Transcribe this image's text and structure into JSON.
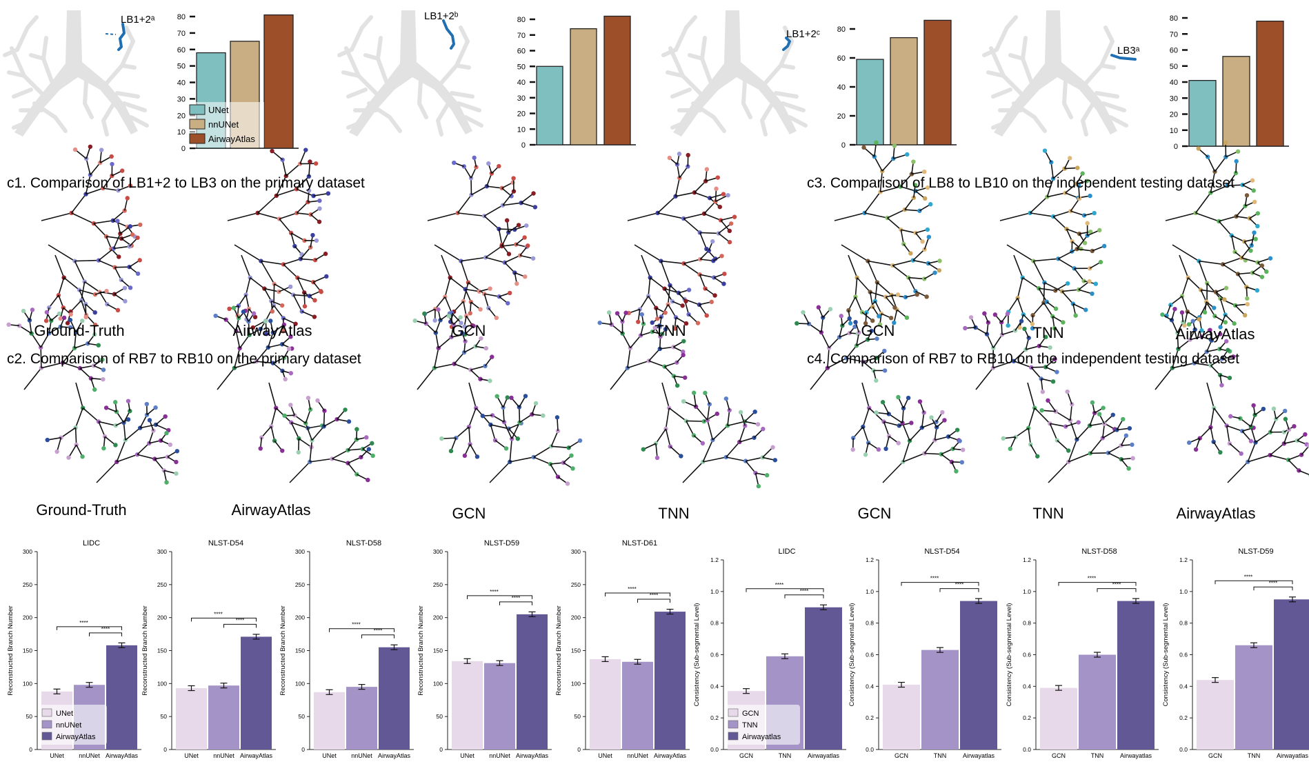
{
  "panel_captions": {
    "c1": "c1. Comparison of LB1+2 to LB3 on the primary dataset",
    "c2": "c2. Comparison of RB7 to RB10 on the primary dataset",
    "c3": "c3. Comparison of LB8 to LB10 on the independent testing dataset",
    "c4": "c4. Comparison of RB7 to RB10 on the independent testing dataset"
  },
  "branch_labels": [
    "LB1+2ᵃ",
    "LB1+2ᵇ",
    "LB1+2ᶜ",
    "LB3ᵃ"
  ],
  "tree_labels": {
    "row1": [
      "Ground-Truth",
      "AirwayAtlas",
      "GCN",
      "TNN",
      "GCN",
      "TNN",
      "AirwayAtlas"
    ],
    "row2": [
      "Ground-Truth",
      "AirwayAtlas",
      "GCN",
      "TNN",
      "GCN",
      "TNN",
      "AirwayAtlas"
    ]
  },
  "colors": {
    "unet": "#7fbfbf",
    "nnunet": "#c9ae84",
    "airwayatlas": "#9d4f2a",
    "p_light": "#e8d9ea",
    "p_mid": "#a493c6",
    "p_dark": "#625896",
    "airway_gray": "#e2e2e2",
    "branch_blue": "#1f6fb2"
  },
  "chart_data": [
    {
      "type": "bar",
      "categories": [
        "UNet",
        "nnUNet",
        "AirwayAtlas"
      ],
      "values": [
        58,
        65,
        81
      ],
      "ylim": [
        0,
        80
      ],
      "yticks": [
        0,
        10,
        20,
        30,
        40,
        50,
        60,
        70,
        80
      ],
      "grid": false,
      "legend": {
        "entries": [
          "UNet",
          "nnUNet",
          "AirwayAtlas"
        ],
        "placement": "lower-left"
      }
    },
    {
      "type": "bar",
      "categories": [
        "UNet",
        "nnUNet",
        "AirwayAtlas"
      ],
      "values": [
        50,
        74,
        82
      ],
      "ylim": [
        0,
        80
      ],
      "yticks": [
        0,
        10,
        20,
        30,
        40,
        50,
        60,
        70,
        80
      ],
      "grid": false
    },
    {
      "type": "bar",
      "categories": [
        "UNet",
        "nnUNet",
        "AirwayAtlas"
      ],
      "values": [
        59,
        74,
        86
      ],
      "ylim": [
        0,
        80
      ],
      "yticks": [
        0,
        20,
        40,
        60,
        80
      ],
      "grid": false
    },
    {
      "type": "bar",
      "categories": [
        "UNet",
        "nnUNet",
        "AirwayAtlas"
      ],
      "values": [
        41,
        56,
        78
      ],
      "ylim": [
        0,
        80
      ],
      "yticks": [
        0,
        10,
        20,
        30,
        40,
        50,
        60,
        70,
        80
      ],
      "grid": false
    },
    {
      "type": "bar",
      "title": "LIDC",
      "ylabel": "Reconstructed Branch Number",
      "categories": [
        "UNet",
        "nnUNet",
        "AirwayAtlas"
      ],
      "values": [
        88,
        98,
        158
      ],
      "ylim": [
        0,
        300
      ],
      "yticks": [
        0,
        50,
        100,
        150,
        200,
        250,
        300
      ],
      "significance": [
        "****",
        "****"
      ],
      "legend": {
        "entries": [
          "UNet",
          "nnUNet",
          "AirwayAtlas"
        ],
        "placement": "lower-left"
      }
    },
    {
      "type": "bar",
      "title": "NLST-D54",
      "ylabel": "Reconstructed Branch Number",
      "categories": [
        "UNet",
        "nnUNet",
        "AirwayAtlas"
      ],
      "values": [
        93,
        97,
        171
      ],
      "ylim": [
        0,
        300
      ],
      "yticks": [
        0,
        50,
        100,
        150,
        200,
        250,
        300
      ],
      "significance": [
        "****",
        "****"
      ]
    },
    {
      "type": "bar",
      "title": "NLST-D58",
      "ylabel": "Reconstructed Branch Number",
      "categories": [
        "UNet",
        "nnUNet",
        "AirwayAtlas"
      ],
      "values": [
        87,
        95,
        155
      ],
      "ylim": [
        0,
        300
      ],
      "yticks": [
        0,
        50,
        100,
        150,
        200,
        250,
        300
      ],
      "significance": [
        "****",
        "****"
      ]
    },
    {
      "type": "bar",
      "title": "NLST-D59",
      "ylabel": "Reconstructed Branch Number",
      "categories": [
        "UNet",
        "nnUNet",
        "AirwayAtlas"
      ],
      "values": [
        134,
        131,
        205
      ],
      "ylim": [
        0,
        300
      ],
      "yticks": [
        0,
        50,
        100,
        150,
        200,
        250,
        300
      ],
      "significance": [
        "****",
        "****"
      ]
    },
    {
      "type": "bar",
      "title": "NLST-D61",
      "ylabel": "Reconstructed Branch Number",
      "categories": [
        "UNet",
        "nnUNet",
        "AirwayAtlas"
      ],
      "values": [
        137,
        133,
        209
      ],
      "ylim": [
        0,
        300
      ],
      "yticks": [
        0,
        50,
        100,
        150,
        200,
        250,
        300
      ],
      "significance": [
        "****",
        "****"
      ]
    },
    {
      "type": "bar",
      "title": "LIDC",
      "ylabel": "Consistency (Sub-segmental Level)",
      "categories": [
        "GCN",
        "TNN",
        "Airwayatlas"
      ],
      "values": [
        0.37,
        0.59,
        0.9
      ],
      "ylim": [
        0,
        1.2
      ],
      "yticks": [
        "0.0",
        "0.2",
        "0.4",
        "0.6",
        "0.8",
        "1.0",
        "1.2"
      ],
      "significance": [
        "****",
        "****"
      ],
      "legend": {
        "entries": [
          "GCN",
          "TNN",
          "Airwayatlas"
        ],
        "placement": "lower-left"
      }
    },
    {
      "type": "bar",
      "title": "NLST-D54",
      "ylabel": "Consistency (Sub-segmental Level)",
      "categories": [
        "GCN",
        "TNN",
        "Airwayatlas"
      ],
      "values": [
        0.41,
        0.63,
        0.94
      ],
      "ylim": [
        0,
        1.2
      ],
      "yticks": [
        "0.0",
        "0.2",
        "0.4",
        "0.6",
        "0.8",
        "1.0",
        "1.2"
      ],
      "significance": [
        "****",
        "****"
      ]
    },
    {
      "type": "bar",
      "title": "NLST-D58",
      "ylabel": "Consistency (Sub-segmental Level)",
      "categories": [
        "GCN",
        "TNN",
        "Airwayatlas"
      ],
      "values": [
        0.39,
        0.6,
        0.94
      ],
      "ylim": [
        0,
        1.2
      ],
      "yticks": [
        "0.0",
        "0.2",
        "0.4",
        "0.6",
        "0.8",
        "1.0",
        "1.2"
      ],
      "significance": [
        "****",
        "****"
      ]
    },
    {
      "type": "bar",
      "title": "NLST-D59",
      "ylabel": "Consistency (Sub-segmental Level)",
      "categories": [
        "GCN",
        "TNN",
        "Airwayatlas"
      ],
      "values": [
        0.44,
        0.66,
        0.95
      ],
      "ylim": [
        0,
        1.2
      ],
      "yticks": [
        "0.0",
        "0.2",
        "0.4",
        "0.6",
        "0.8",
        "1.0",
        "1.2"
      ],
      "significance": [
        "****",
        "****"
      ]
    }
  ]
}
